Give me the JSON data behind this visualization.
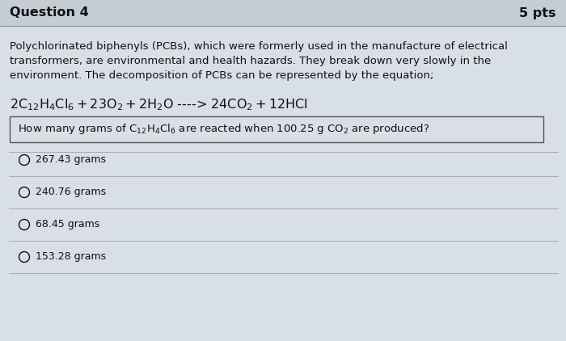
{
  "bg_color": "#d8dfe6",
  "header_bg": "#c4ccd4",
  "question_label": "Question 4",
  "pts_label": "5 pts",
  "para_line1": "Polychlorinated biphenyls (PCBs), which were formerly used in the manufacture of electrical",
  "para_line2": "transformers, are environmental and health hazards. They break down very slowly in the",
  "para_line3": "environment. The decomposition of PCBs can be represented by the equation;",
  "options": [
    "267.43 grams",
    "240.76 grams",
    "68.45 grams",
    "153.28 grams"
  ],
  "text_color": "#111111",
  "line_color": "#aaaaaa",
  "box_color": "#555555",
  "font_size_header": 11.5,
  "font_size_body": 9.5,
  "font_size_equation": 11.5,
  "font_size_options": 9.0
}
